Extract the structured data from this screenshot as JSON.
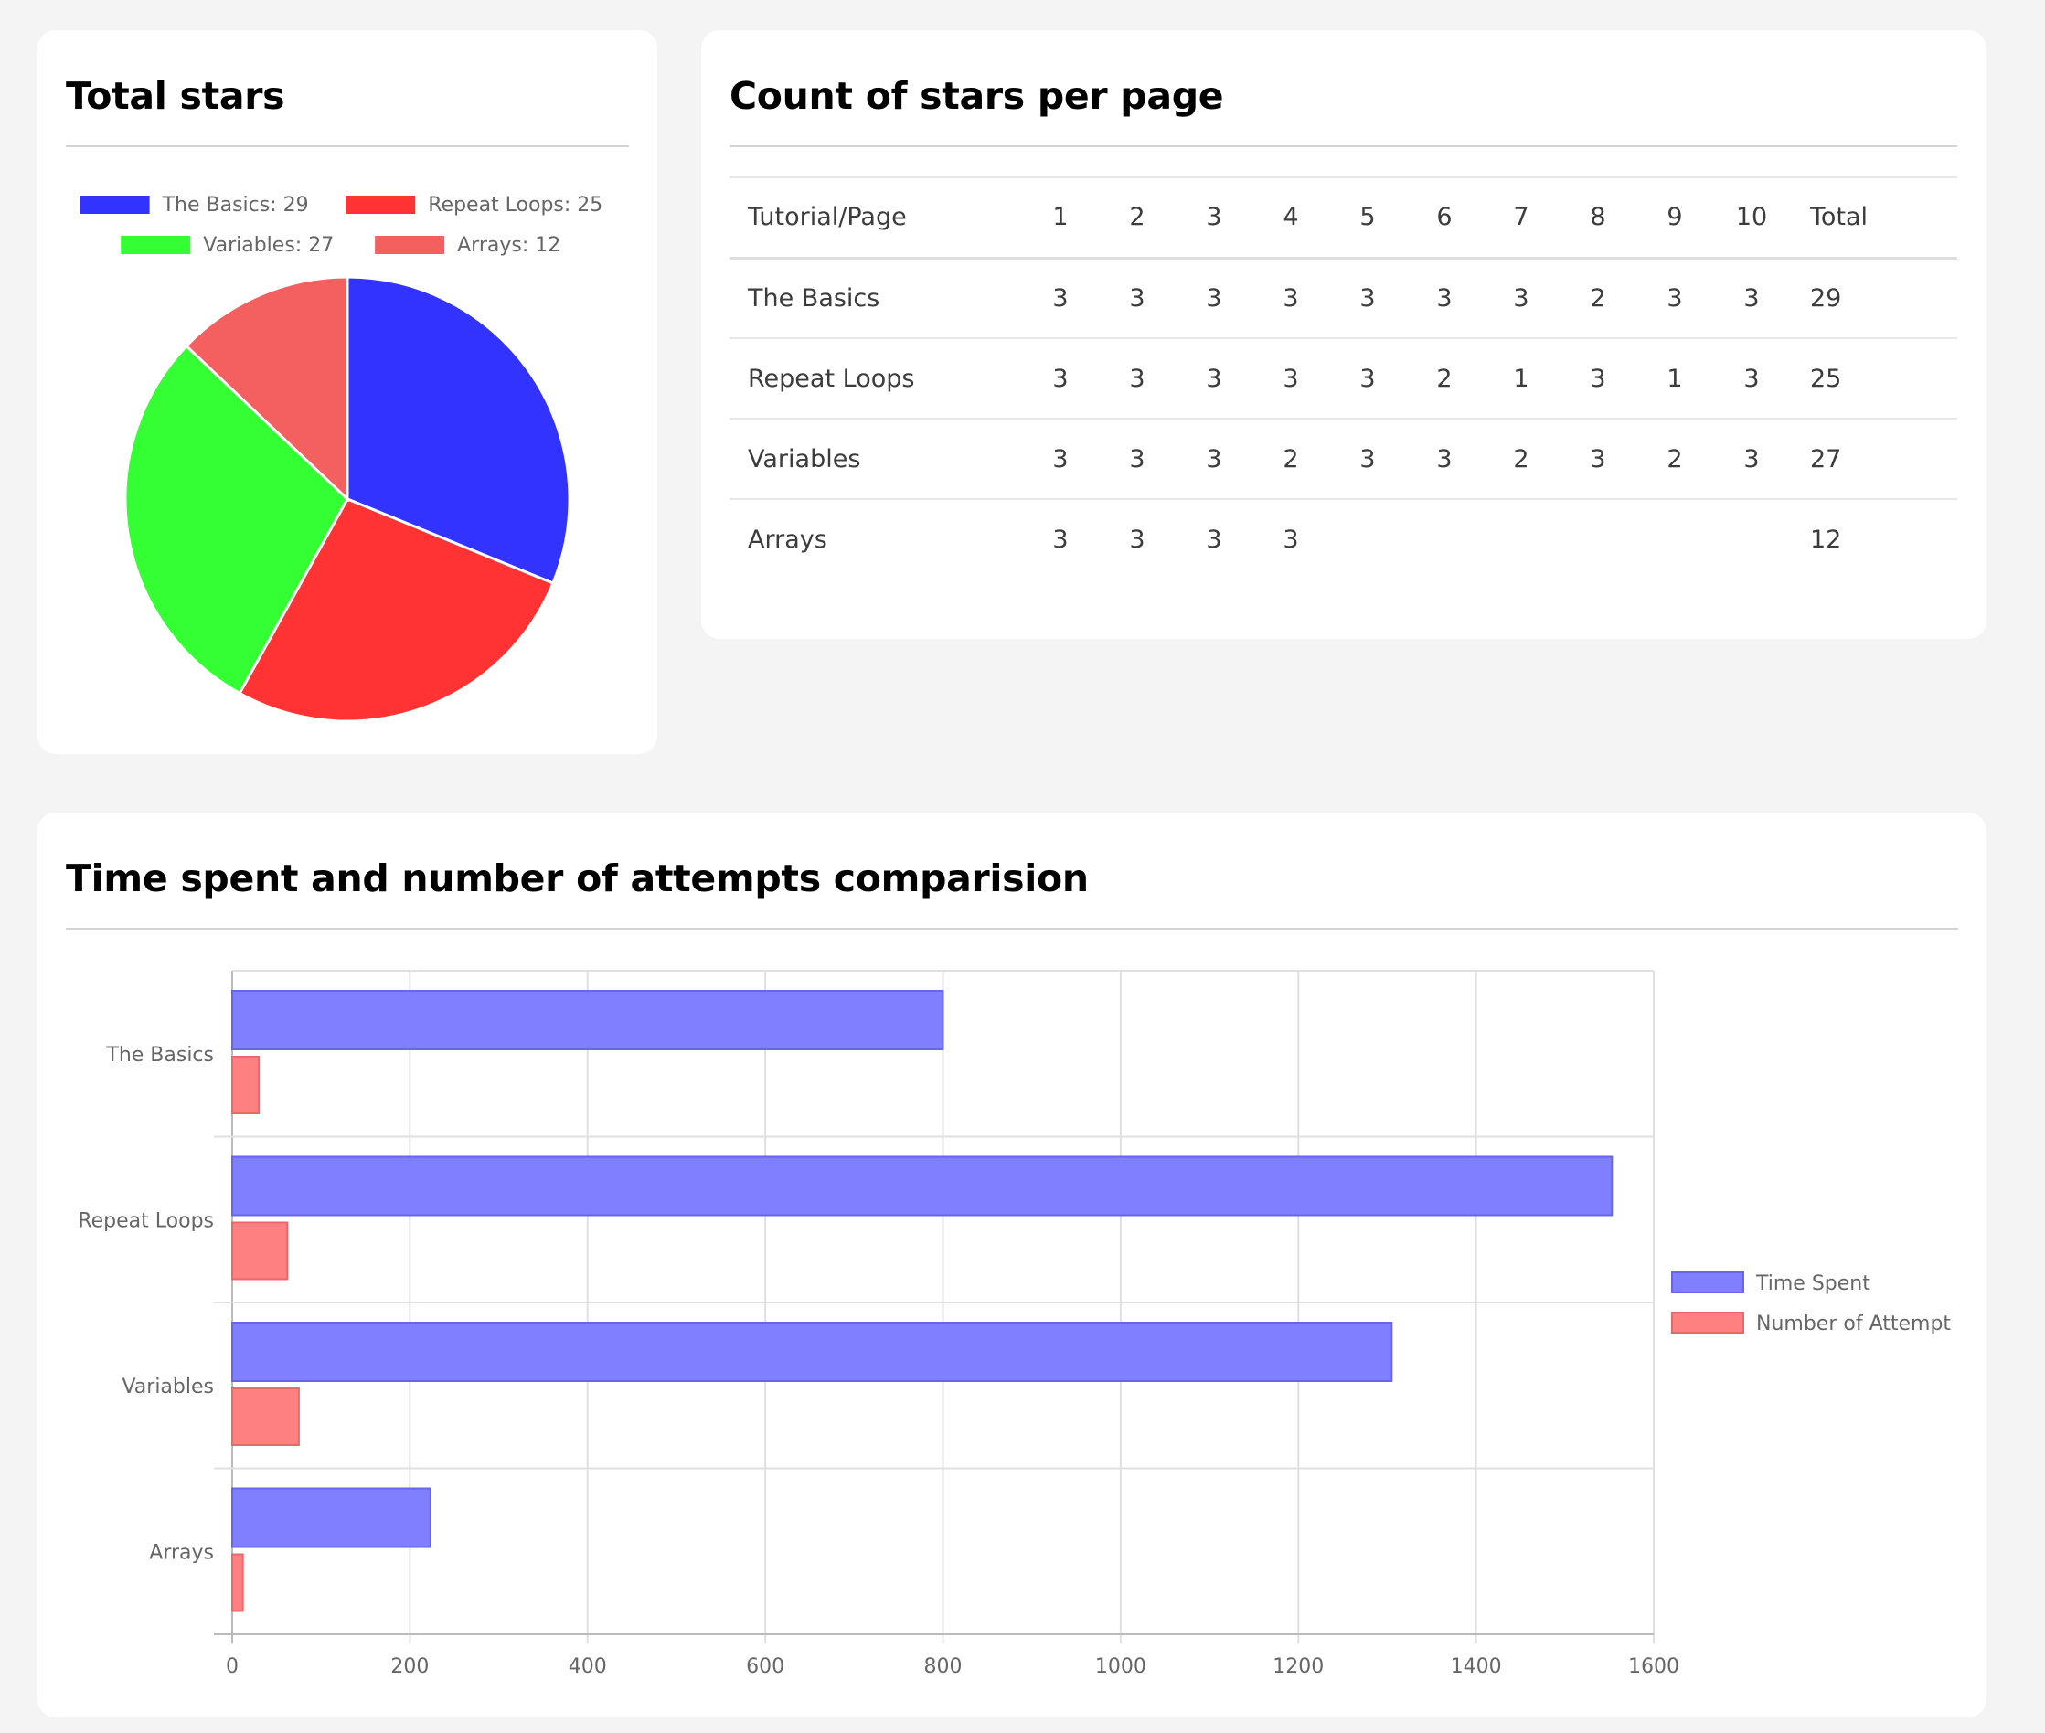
{
  "pie_card": {
    "title": "Total stars"
  },
  "table_card": {
    "title": "Count of stars per page",
    "columns": [
      "Tutorial/Page",
      "1",
      "2",
      "3",
      "4",
      "5",
      "6",
      "7",
      "8",
      "9",
      "10",
      "Total"
    ],
    "rows": [
      {
        "name": "The Basics",
        "cells": [
          "3",
          "3",
          "3",
          "3",
          "3",
          "3",
          "3",
          "2",
          "3",
          "3"
        ],
        "total": "29"
      },
      {
        "name": "Repeat Loops",
        "cells": [
          "3",
          "3",
          "3",
          "3",
          "3",
          "2",
          "1",
          "3",
          "1",
          "3"
        ],
        "total": "25"
      },
      {
        "name": "Variables",
        "cells": [
          "3",
          "3",
          "3",
          "2",
          "3",
          "3",
          "2",
          "3",
          "2",
          "3"
        ],
        "total": "27"
      },
      {
        "name": "Arrays",
        "cells": [
          "3",
          "3",
          "3",
          "3",
          "",
          "",
          "",
          "",
          "",
          ""
        ],
        "total": "12"
      }
    ]
  },
  "bar_card": {
    "title": "Time spent and number of attempts comparision"
  },
  "chart_data": [
    {
      "type": "pie",
      "title": "",
      "legend_position": "top",
      "labels": [
        "The Basics",
        "Repeat Loops",
        "Variables",
        "Arrays"
      ],
      "values": [
        29,
        25,
        27,
        12
      ],
      "legend_labels": [
        "The Basics: 29",
        "Repeat Loops: 25",
        "Variables: 27",
        "Arrays: 12"
      ],
      "colors": [
        "#3333ff",
        "#ff3333",
        "#33ff33",
        "#f46060"
      ]
    },
    {
      "type": "bar",
      "orientation": "horizontal",
      "title": "",
      "categories": [
        "The Basics",
        "Repeat Loops",
        "Variables",
        "Arrays"
      ],
      "series": [
        {
          "name": "Time Spent",
          "values": [
            800,
            1553,
            1305,
            223
          ],
          "color": "#7f7fff"
        },
        {
          "name": "Number of Attempt",
          "values": [
            30,
            62,
            75,
            12
          ],
          "color": "#ff8080"
        }
      ],
      "xlim": [
        0,
        1600
      ],
      "x_ticks": [
        "0",
        "200",
        "400",
        "600",
        "800",
        "1000",
        "1200",
        "1400",
        "1600"
      ],
      "grid": true,
      "legend_position": "right"
    }
  ]
}
